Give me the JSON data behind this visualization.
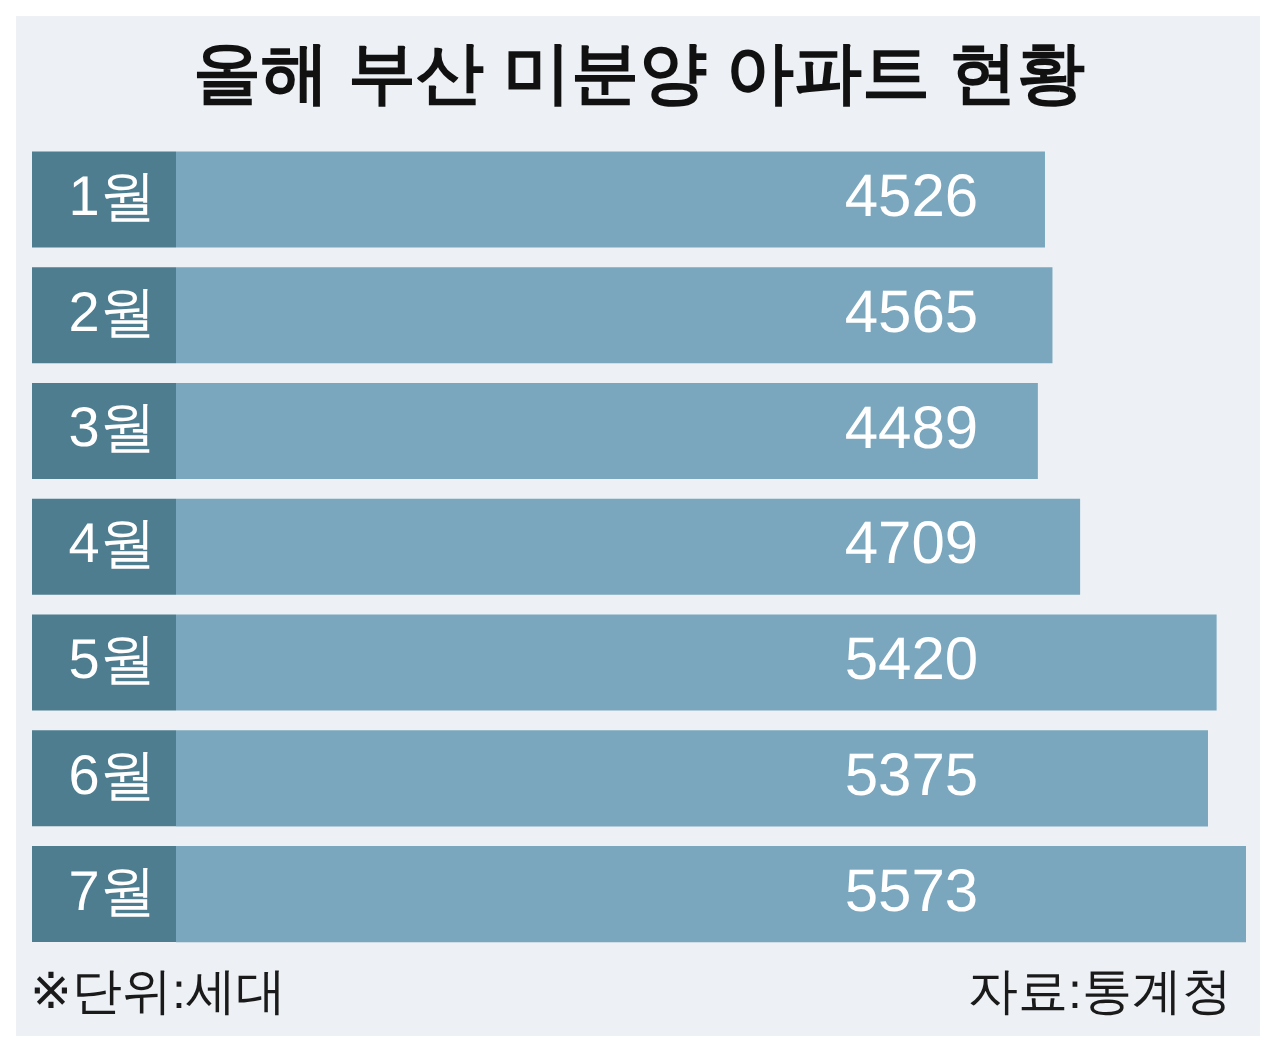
{
  "chart_data": {
    "type": "bar",
    "orientation": "horizontal",
    "title": "올해 부산 미분양 아파트 현황",
    "categories": [
      "1월",
      "2월",
      "3월",
      "4월",
      "5월",
      "6월",
      "7월"
    ],
    "values": [
      4526,
      4565,
      4489,
      4709,
      5420,
      5375,
      5573
    ],
    "color": "#7aa7bd",
    "data_labels": true,
    "tick_labels": "y",
    "annotations": [
      "※단위:세대",
      "자료:통계청"
    ]
  }
}
